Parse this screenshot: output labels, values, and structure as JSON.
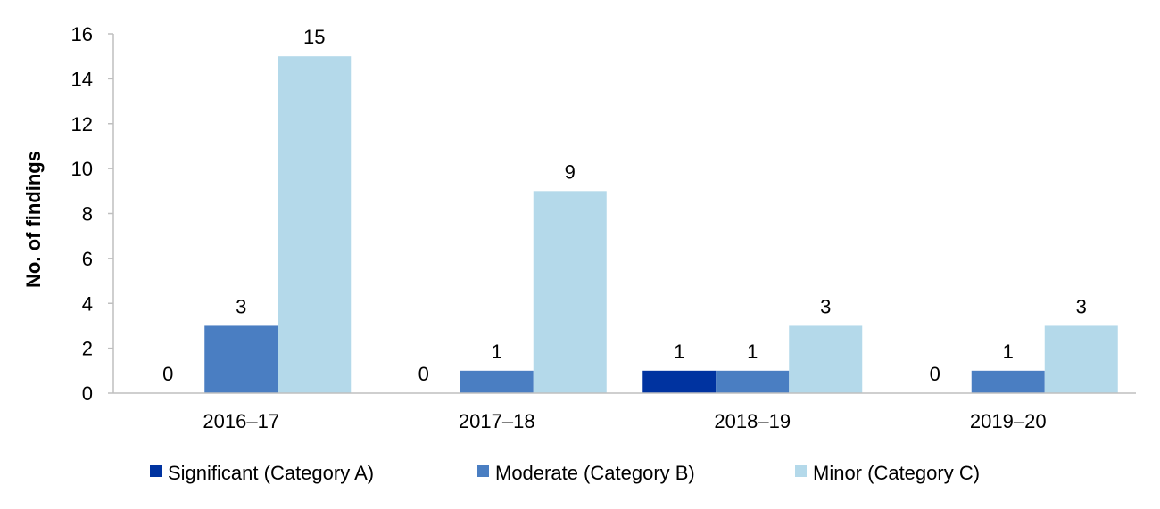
{
  "chart_data": {
    "type": "bar",
    "title": "",
    "xlabel": "",
    "ylabel": "No. of findings",
    "ylim": [
      0,
      16
    ],
    "yticks": [
      "0",
      "2",
      "4",
      "6",
      "8",
      "10",
      "12",
      "14",
      "16"
    ],
    "categories": [
      "2016–17",
      "2017–18",
      "2018–19",
      "2019–20"
    ],
    "series": [
      {
        "name": "Significant (Category A)",
        "color": "#0033A0",
        "values": [
          0,
          0,
          1,
          0
        ]
      },
      {
        "name": "Moderate (Category B)",
        "color": "#4A7EC2",
        "values": [
          3,
          1,
          1,
          1
        ]
      },
      {
        "name": "Minor (Category C)",
        "color": "#B4D9EA",
        "values": [
          15,
          9,
          3,
          3
        ]
      }
    ],
    "data_labels": true,
    "grid": false,
    "legend_position": "bottom"
  }
}
